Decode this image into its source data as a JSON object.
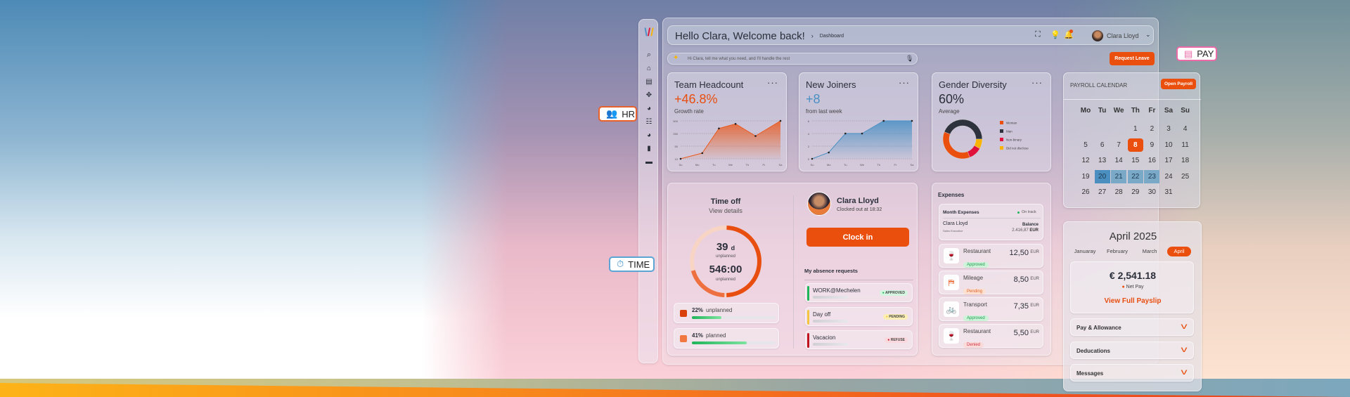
{
  "colors": {
    "accent": "#ea4f0e",
    "blue": "#4a90c4",
    "approved": "#1fb559",
    "pending": "#f5c542",
    "refused": "#e0123c"
  },
  "badges": {
    "hr": "HR",
    "time": "TIME",
    "pay": "PAY"
  },
  "sidebar": {
    "icons": [
      "logo",
      "search-icon",
      "home-icon",
      "book-icon",
      "move-icon",
      "pie-chart-icon",
      "checklist-icon",
      "user-chart-icon",
      "document-icon",
      "ticket-icon"
    ]
  },
  "header": {
    "title": "Hello Clara, Welcome back!",
    "breadcrumb": "Dashboard",
    "user": "Clara Lloyd"
  },
  "assistant": {
    "placeholder": "Hi Clara, tell me what you need, and I'll handle the rest"
  },
  "request_leave": "Request Leave",
  "headcount": {
    "title": "Team Headcount",
    "value": "+46.8%",
    "label": "Growth rate"
  },
  "joiners": {
    "title": "New Joiners",
    "value": "+8",
    "label": "from last week"
  },
  "gender": {
    "title": "Gender Diversity",
    "value": "60%",
    "label": "Average"
  },
  "chart_data": [
    {
      "type": "area",
      "title": "Team Headcount",
      "categories": [
        "Su",
        "Mo",
        "Tu",
        "We",
        "Th",
        "Fr",
        "Sa"
      ],
      "yticks": [
        10,
        50,
        250,
        500
      ],
      "x": [
        0,
        1.3,
        2.3,
        3.3,
        4.5,
        6
      ],
      "values": [
        10,
        28,
        350,
        440,
        210,
        500
      ],
      "color": "#ea5a1e"
    },
    {
      "type": "area",
      "title": "New Joiners",
      "categories": [
        "Su",
        "Mo",
        "Tu",
        "We",
        "Th",
        "Fr",
        "Sa"
      ],
      "yticks": [
        0,
        2,
        4,
        6
      ],
      "x": [
        0,
        1,
        2,
        3,
        4.3,
        6
      ],
      "values": [
        0,
        1,
        4,
        4,
        6,
        6
      ],
      "color": "#4a90c4"
    },
    {
      "type": "pie",
      "title": "Gender Diversity",
      "labels": [
        "Woman",
        "Man",
        "Non-binary",
        "Did not disclose"
      ],
      "values": [
        37,
        44,
        11,
        8
      ],
      "colors": [
        "#ea4f0e",
        "#2e323c",
        "#e0123c",
        "#f8b400"
      ]
    }
  ],
  "payroll": {
    "title": "PAYROLL CALENDAR",
    "button": "Open Payroll",
    "weekdays": [
      "Mo",
      "Tu",
      "We",
      "Th",
      "Fr",
      "Sa",
      "Su"
    ],
    "first_weekday": 3,
    "days": 31,
    "selected": 8,
    "range": [
      20,
      23
    ]
  },
  "timeoff": {
    "title": "Time off",
    "link": "View details",
    "days": "39",
    "days_unit": "d",
    "days_label": "unplanned",
    "hours": "546:00",
    "hours_label": "unplanned",
    "ring": {
      "unplanned_pct": 22,
      "planned_pct": 41
    },
    "items": [
      {
        "pct": "22%",
        "label": "unplanned",
        "value": 22,
        "color": "#d9400c"
      },
      {
        "pct": "41%",
        "label": "planned",
        "value": 41,
        "color": "#f07840"
      }
    ]
  },
  "clock": {
    "name": "Clara Lloyd",
    "status": "Clocked out at 18:32",
    "button": "Clock in"
  },
  "absence": {
    "title": "My absence requests",
    "items": [
      {
        "name": "WORK@Mechelen",
        "status": "APPROVED",
        "color": "#1fb559",
        "bg": "#d4f5df"
      },
      {
        "name": "Day off",
        "status": "PENDING",
        "color": "#f5c542",
        "bg": "#fbefb5"
      },
      {
        "name": "Vacacion",
        "status": "REFUSE",
        "color": "#c0121f",
        "bg": "#fbd9de"
      }
    ]
  },
  "expenses": {
    "title": "Expenses",
    "month": "Month Expenses",
    "ontrack": "On track",
    "person": "Clara Lloyd",
    "role": "Sales Executive",
    "balance_label": "Balance",
    "balance": "2.416,87",
    "balance_cur": "EUR",
    "items": [
      {
        "icon": "restaurant-icon",
        "glyph": "🍷",
        "name": "Restaurant",
        "status": "Approved",
        "amount": "12,50",
        "cur": "EUR",
        "sc": "#1f9a4f",
        "sb": "#cdf3d9"
      },
      {
        "icon": "signpost-icon",
        "glyph": "⛿",
        "name": "Mileage",
        "status": "Pending",
        "amount": "8,50",
        "cur": "EUR",
        "sc": "#e0642a",
        "sb": "#fde0d0"
      },
      {
        "icon": "bicycle-icon",
        "glyph": "🚲",
        "name": "Transport",
        "status": "Approved",
        "amount": "7,35",
        "cur": "EUR",
        "sc": "#1f9a4f",
        "sb": "#cdf3d9"
      },
      {
        "icon": "restaurant-icon",
        "glyph": "🍷",
        "name": "Restaurant",
        "status": "Denied",
        "amount": "5,50",
        "cur": "EUR",
        "sc": "#d03040",
        "sb": "#fbdada"
      }
    ]
  },
  "payslip": {
    "title": "April 2025",
    "months": [
      "Januaray",
      "February",
      "March",
      "April"
    ],
    "active": 3,
    "amount": "€ 2,541.18",
    "net": "Net Pay",
    "link": "View Full Payslip",
    "sections": [
      "Pay & Allowance",
      "Deducations",
      "Messages"
    ]
  }
}
